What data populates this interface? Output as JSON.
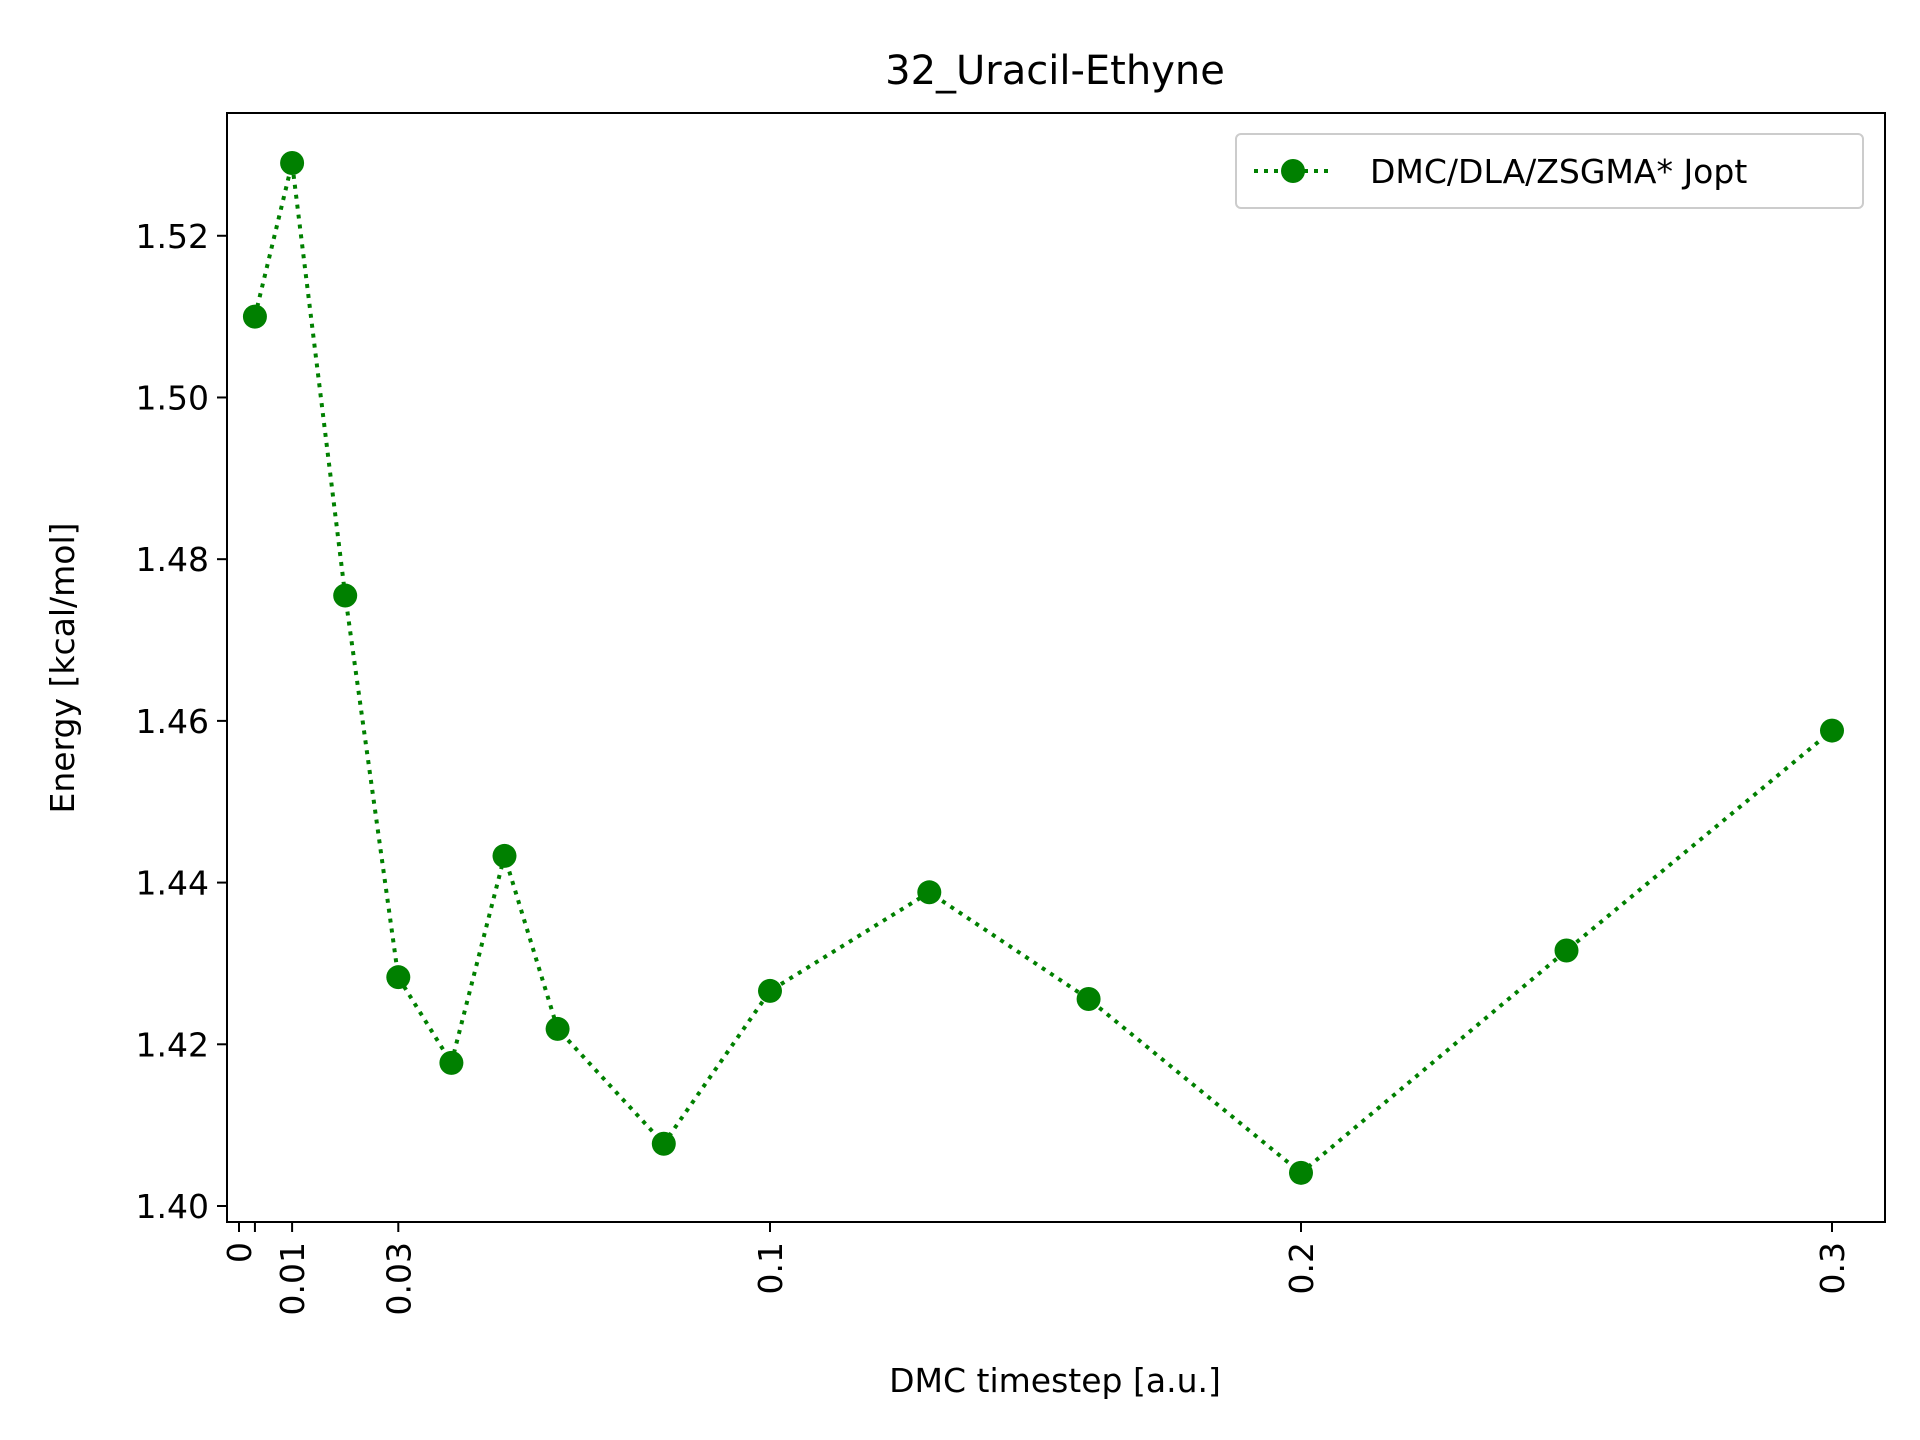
{
  "chart_data": {
    "type": "line",
    "title": "32_Uracil-Ethyne",
    "xlabel": "DMC timestep [a.u.]",
    "ylabel": "Energy [kcal/mol]",
    "xlim": [
      0,
      0.3
    ],
    "ylim": [
      1.398,
      1.535
    ],
    "x_ticks": [
      {
        "value": 0,
        "label": "0"
      },
      {
        "value": 0.003,
        "label": ""
      },
      {
        "value": 0.01,
        "label": "0.01"
      },
      {
        "value": 0.03,
        "label": "0.03"
      },
      {
        "value": 0.1,
        "label": "0.1"
      },
      {
        "value": 0.2,
        "label": "0.2"
      },
      {
        "value": 0.3,
        "label": "0.3"
      }
    ],
    "y_ticks": [
      {
        "value": 1.4,
        "label": "1.40"
      },
      {
        "value": 1.42,
        "label": "1.42"
      },
      {
        "value": 1.44,
        "label": "1.44"
      },
      {
        "value": 1.46,
        "label": "1.46"
      },
      {
        "value": 1.48,
        "label": "1.48"
      },
      {
        "value": 1.5,
        "label": "1.50"
      },
      {
        "value": 1.52,
        "label": "1.52"
      }
    ],
    "grid": false,
    "legend_position": "top-right",
    "series": [
      {
        "name": "DMC/DLA/ZSGMA* Jopt",
        "color": "#008000",
        "line_style": "dotted",
        "marker": "circle",
        "x": [
          0.003,
          0.01,
          0.02,
          0.03,
          0.04,
          0.05,
          0.06,
          0.08,
          0.1,
          0.13,
          0.16,
          0.2,
          0.25,
          0.3
        ],
        "y": [
          1.51,
          1.529,
          1.4755,
          1.4283,
          1.4177,
          1.4433,
          1.4219,
          1.4077,
          1.4266,
          1.4388,
          1.4256,
          1.4041,
          1.4316,
          1.4588
        ]
      }
    ]
  }
}
